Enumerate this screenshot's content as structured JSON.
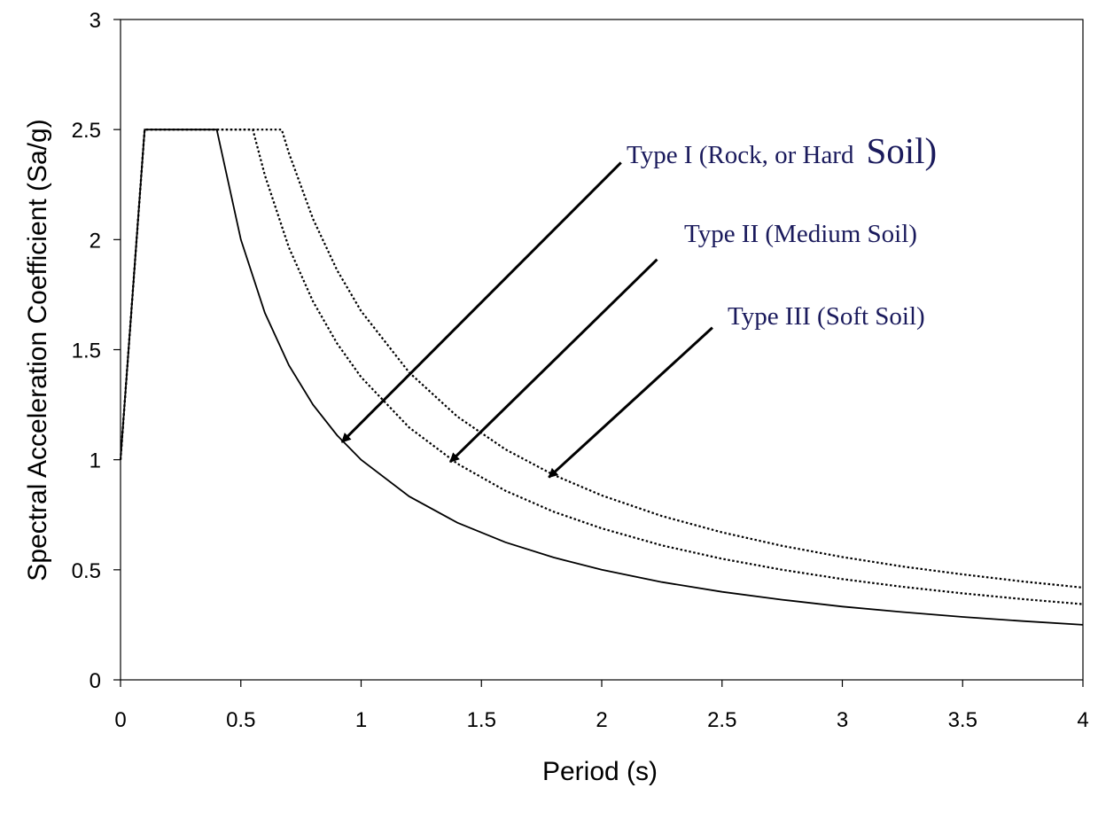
{
  "chart_data": {
    "type": "line",
    "title": "",
    "xlabel": "Period (s)",
    "ylabel": "Spectral Acceleration Coefficient (Sa/g)",
    "xlim": [
      0,
      4
    ],
    "ylim": [
      0,
      3
    ],
    "x_ticks": [
      0,
      0.5,
      1,
      1.5,
      2,
      2.5,
      3,
      3.5,
      4
    ],
    "x_tick_labels": [
      "0",
      "0.5",
      "1",
      "1.5",
      "2",
      "2.5",
      "3",
      "3.5",
      "4"
    ],
    "y_ticks": [
      0,
      0.5,
      1,
      1.5,
      2,
      2.5,
      3
    ],
    "y_tick_labels": [
      "0",
      "0.5",
      "1",
      "1.5",
      "2",
      "2.5",
      "3"
    ],
    "grid": false,
    "legend": "none",
    "series": [
      {
        "key": "type1",
        "style": "solid",
        "x": [
          0,
          0.1,
          0.4,
          0.5,
          0.6,
          0.7,
          0.8,
          0.9,
          1.0,
          1.2,
          1.4,
          1.6,
          1.8,
          2.0,
          2.25,
          2.5,
          2.75,
          3.0,
          3.25,
          3.5,
          3.75,
          4.0
        ],
        "values": [
          1.0,
          2.5,
          2.5,
          2.0,
          1.667,
          1.429,
          1.25,
          1.111,
          1.0,
          0.833,
          0.714,
          0.625,
          0.556,
          0.5,
          0.444,
          0.4,
          0.364,
          0.333,
          0.308,
          0.286,
          0.267,
          0.25
        ]
      },
      {
        "key": "type2",
        "style": "dotted",
        "x": [
          0,
          0.1,
          0.55,
          0.6,
          0.7,
          0.8,
          0.9,
          1.0,
          1.2,
          1.4,
          1.6,
          1.8,
          2.0,
          2.25,
          2.5,
          2.75,
          3.0,
          3.25,
          3.5,
          3.75,
          4.0
        ],
        "values": [
          1.0,
          2.5,
          2.5,
          2.292,
          1.964,
          1.719,
          1.528,
          1.375,
          1.146,
          0.982,
          0.859,
          0.764,
          0.688,
          0.611,
          0.55,
          0.5,
          0.458,
          0.423,
          0.393,
          0.367,
          0.344
        ]
      },
      {
        "key": "type3",
        "style": "dotted",
        "x": [
          0,
          0.1,
          0.67,
          0.7,
          0.8,
          0.9,
          1.0,
          1.2,
          1.4,
          1.6,
          1.8,
          2.0,
          2.25,
          2.5,
          2.75,
          3.0,
          3.25,
          3.5,
          3.75,
          4.0
        ],
        "values": [
          1.0,
          2.5,
          2.5,
          2.393,
          2.094,
          1.861,
          1.675,
          1.396,
          1.196,
          1.047,
          0.931,
          0.838,
          0.744,
          0.67,
          0.609,
          0.558,
          0.515,
          0.479,
          0.447,
          0.419
        ]
      }
    ],
    "annotations": [
      {
        "key": "ann1",
        "text": "Type I (Rock, or Hard",
        "text_big": "Soil)",
        "arrow_from": [
          2.08,
          2.35
        ],
        "arrow_to": [
          0.92,
          1.08
        ]
      },
      {
        "key": "ann2",
        "text": "Type II (Medium Soil)",
        "arrow_from": [
          2.23,
          1.91
        ],
        "arrow_to": [
          1.37,
          0.99
        ]
      },
      {
        "key": "ann3",
        "text": "Type III (Soft Soil)",
        "arrow_from": [
          2.46,
          1.6
        ],
        "arrow_to": [
          1.78,
          0.92
        ]
      }
    ]
  }
}
